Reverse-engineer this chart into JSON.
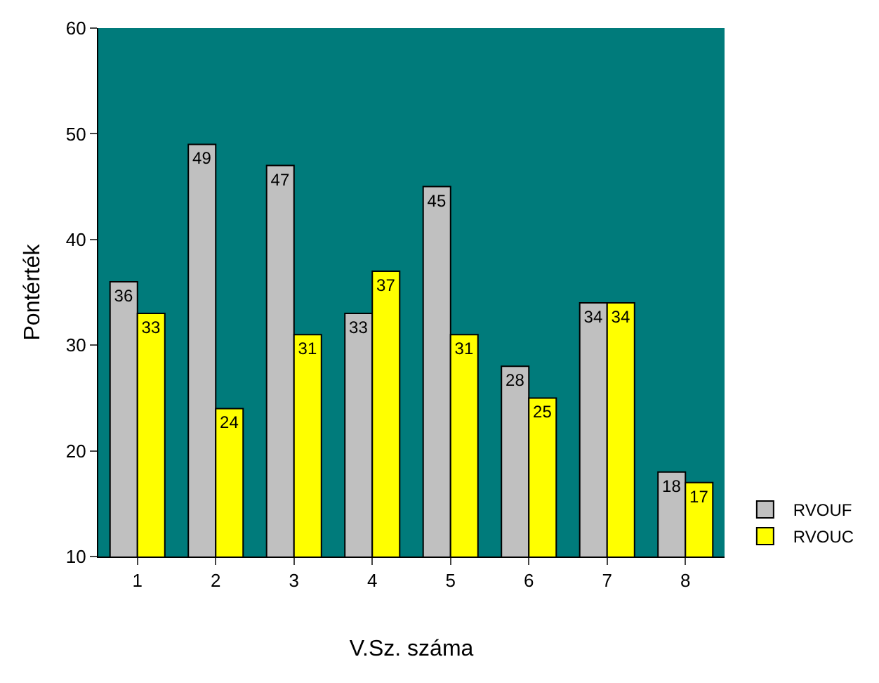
{
  "chart_data": {
    "type": "bar",
    "xlabel": "V.Sz. száma",
    "ylabel": "Pontérték",
    "categories": [
      "1",
      "2",
      "3",
      "4",
      "5",
      "6",
      "7",
      "8"
    ],
    "series": [
      {
        "name": "RVOUF",
        "color": "#c0c0c0",
        "values": [
          36,
          49,
          47,
          33,
          45,
          28,
          34,
          18
        ]
      },
      {
        "name": "RVOUC",
        "color": "#ffff00",
        "values": [
          33,
          24,
          31,
          37,
          31,
          25,
          34,
          17
        ]
      }
    ],
    "ylim": [
      10,
      60
    ],
    "yticks": [
      10,
      20,
      30,
      40,
      50,
      60
    ],
    "grid": false,
    "legend": "bottom right",
    "data_labels": true
  }
}
